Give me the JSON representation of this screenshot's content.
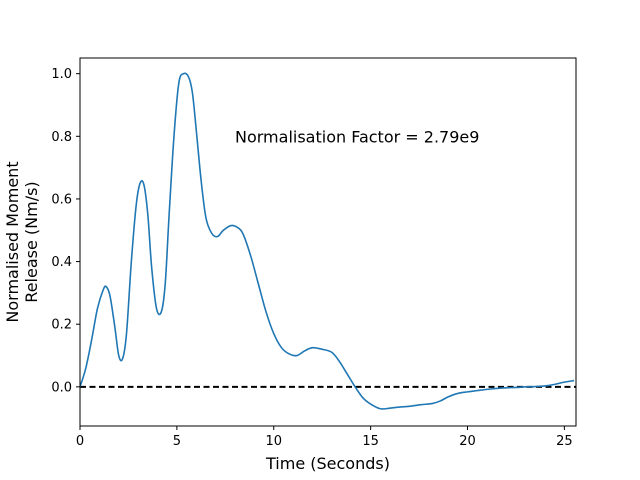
{
  "chart_data": {
    "type": "line",
    "title": "",
    "xlabel": "Time (Seconds)",
    "ylabel_lines": [
      "Normalised Moment",
      "Release (Nm/s)"
    ],
    "xlim": [
      0,
      25.6
    ],
    "ylim": [
      -0.125,
      1.05
    ],
    "xticks": [
      0,
      5,
      10,
      15,
      20,
      25
    ],
    "yticks": [
      0.0,
      0.2,
      0.4,
      0.6,
      0.8,
      1.0
    ],
    "ytick_labels": [
      "0.0",
      "0.2",
      "0.4",
      "0.6",
      "0.8",
      "1.0"
    ],
    "grid": false,
    "annotation": {
      "text": "Normalisation Factor = 2.79e9",
      "x": 8.0,
      "y": 0.8
    },
    "reference_line": {
      "y": 0.0,
      "style": "dashed",
      "color": "#000000"
    },
    "series": [
      {
        "color": "#1f77b4",
        "x": [
          0.0,
          0.3,
          0.6,
          0.9,
          1.2,
          1.35,
          1.55,
          1.8,
          2.0,
          2.2,
          2.4,
          2.65,
          2.9,
          3.1,
          3.3,
          3.5,
          3.7,
          3.95,
          4.2,
          4.4,
          4.6,
          4.85,
          5.1,
          5.35,
          5.6,
          5.8,
          6.0,
          6.25,
          6.5,
          6.8,
          7.1,
          7.4,
          7.8,
          8.1,
          8.4,
          8.8,
          9.2,
          9.6,
          10.0,
          10.4,
          10.8,
          11.2,
          11.6,
          12.0,
          12.5,
          13.0,
          13.4,
          13.8,
          14.2,
          14.6,
          15.0,
          15.5,
          16.0,
          16.4,
          17.0,
          17.6,
          18.2,
          18.6,
          19.0,
          19.5,
          20.0,
          20.5,
          21.0,
          21.5,
          22.0,
          22.5,
          23.0,
          23.5,
          24.0,
          24.5,
          25.0,
          25.5
        ],
        "y": [
          0.0,
          0.06,
          0.15,
          0.25,
          0.31,
          0.32,
          0.29,
          0.19,
          0.1,
          0.09,
          0.17,
          0.4,
          0.58,
          0.65,
          0.645,
          0.55,
          0.38,
          0.25,
          0.24,
          0.33,
          0.55,
          0.8,
          0.97,
          1.0,
          0.99,
          0.94,
          0.82,
          0.66,
          0.54,
          0.49,
          0.48,
          0.5,
          0.515,
          0.51,
          0.49,
          0.42,
          0.33,
          0.24,
          0.17,
          0.125,
          0.105,
          0.1,
          0.115,
          0.125,
          0.12,
          0.11,
          0.08,
          0.04,
          0.0,
          -0.035,
          -0.055,
          -0.07,
          -0.068,
          -0.065,
          -0.062,
          -0.057,
          -0.053,
          -0.045,
          -0.032,
          -0.021,
          -0.016,
          -0.012,
          -0.008,
          -0.005,
          -0.003,
          -0.002,
          0.0,
          0.001,
          0.003,
          0.008,
          0.015,
          0.02
        ]
      }
    ]
  }
}
